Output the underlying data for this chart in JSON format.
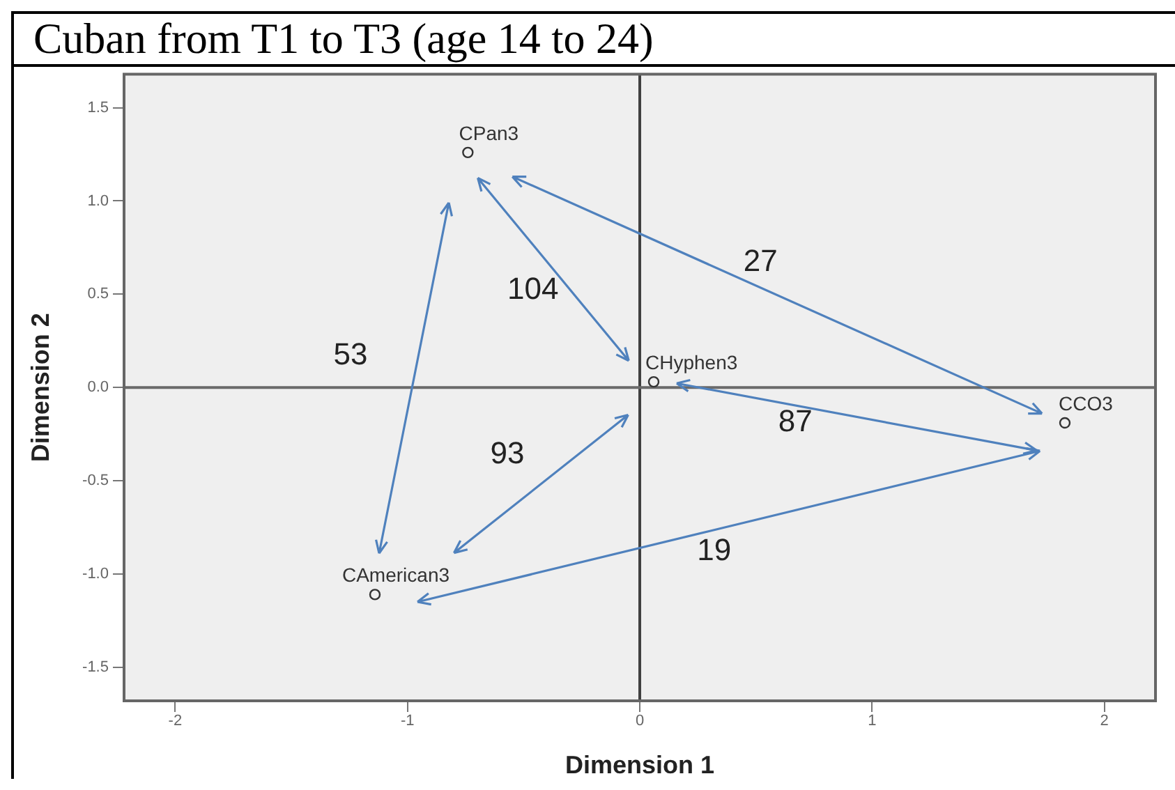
{
  "chart_data": {
    "type": "scatter",
    "title": "Cuban from T1 to T3 (age 14 to 24)",
    "xlabel": "Dimension 1",
    "ylabel": "Dimension 2",
    "series": [
      {
        "name": "CPan3",
        "color": "#333333",
        "x": [
          -0.74
        ],
        "values": [
          1.26
        ]
      },
      {
        "name": "CHyphen3",
        "color": "#333333",
        "x": [
          0.06
        ],
        "values": [
          0.03
        ]
      },
      {
        "name": "CCO3",
        "color": "#333333",
        "x": [
          1.83
        ],
        "values": [
          -0.19
        ]
      },
      {
        "name": "CAmerican3",
        "color": "#333333",
        "x": [
          -1.14
        ],
        "values": [
          -1.11
        ]
      }
    ],
    "xlim": [
      -2.22,
      2.22
    ],
    "xticks": [
      -2,
      -1,
      0,
      1,
      2
    ],
    "ylim": [
      -1.68,
      1.68
    ],
    "yticks": [
      -1.5,
      {
        "value": -1,
        "label": "-1.0"
      },
      -0.5,
      {
        "value": 0,
        "label": "0.0"
      },
      0.5,
      {
        "value": 1,
        "label": "1.0"
      },
      1.5
    ],
    "ref_lines": [
      {
        "axis": "x",
        "value": 0,
        "color": "#404040"
      },
      {
        "axis": "y",
        "value": 0,
        "color": "#6a6a6a"
      }
    ],
    "annotations": [
      "53",
      "104",
      "27",
      "87",
      "93",
      "19"
    ],
    "grid": false,
    "legend": false,
    "marker": "circle"
  }
}
